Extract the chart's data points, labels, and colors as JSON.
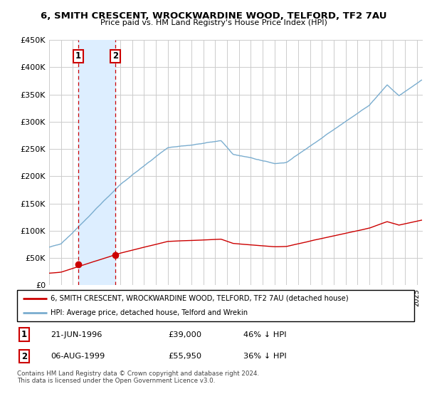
{
  "title1": "6, SMITH CRESCENT, WROCKWARDINE WOOD, TELFORD, TF2 7AU",
  "title2": "Price paid vs. HM Land Registry's House Price Index (HPI)",
  "ylim": [
    0,
    450000
  ],
  "yticks": [
    0,
    50000,
    100000,
    150000,
    200000,
    250000,
    300000,
    350000,
    400000,
    450000
  ],
  "ytick_labels": [
    "£0",
    "£50K",
    "£100K",
    "£150K",
    "£200K",
    "£250K",
    "£300K",
    "£350K",
    "£400K",
    "£450K"
  ],
  "xlim_start": 1994.0,
  "xlim_end": 2025.5,
  "purchase1_x": 1996.47,
  "purchase1_y": 39000,
  "purchase2_x": 1999.6,
  "purchase2_y": 55950,
  "purchase_color": "#cc0000",
  "hpi_color": "#7aadcf",
  "shade_color": "#ddeeff",
  "grid_color": "#cccccc",
  "legend_entry1": "6, SMITH CRESCENT, WROCKWARDINE WOOD, TELFORD, TF2 7AU (detached house)",
  "legend_entry2": "HPI: Average price, detached house, Telford and Wrekin",
  "table_row1": [
    "1",
    "21-JUN-1996",
    "£39,000",
    "46% ↓ HPI"
  ],
  "table_row2": [
    "2",
    "06-AUG-1999",
    "£55,950",
    "36% ↓ HPI"
  ],
  "footer": "Contains HM Land Registry data © Crown copyright and database right 2024.\nThis data is licensed under the Open Government Licence v3.0."
}
